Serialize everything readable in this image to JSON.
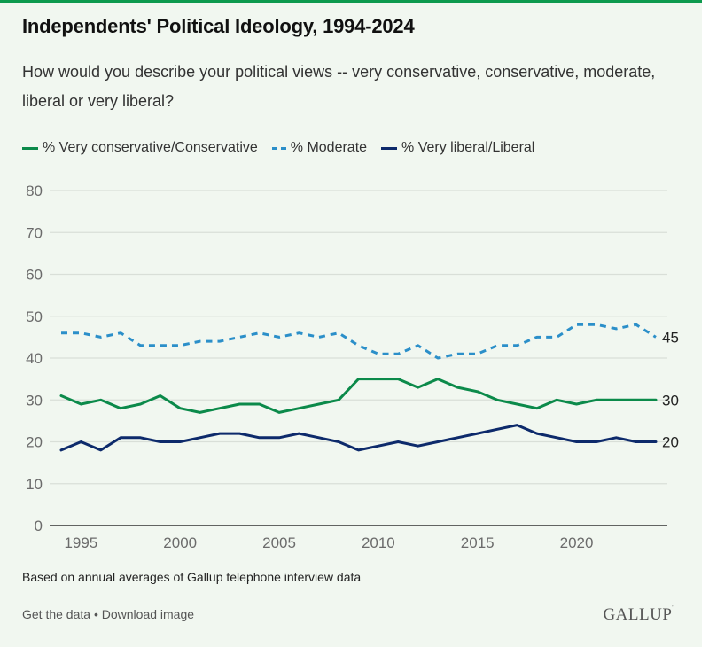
{
  "title": "Independents' Political Ideology, 1994-2024",
  "subtitle": "How would you describe your political views -- very conservative, conservative, moderate, liberal or very liberal?",
  "footer": {
    "note": "Based on annual averages of Gallup telephone interview data",
    "get_data": "Get the data",
    "separator": " • ",
    "download": "Download image",
    "logo": "GALLUP",
    "logo_mark": "'"
  },
  "colors": {
    "conservative": "#0b8a4a",
    "moderate": "#2b8fc9",
    "liberal": "#0d2a6b",
    "accent": "#0d9a4e",
    "grid": "#d9dfd8",
    "axis": "#333333"
  },
  "chart_data": {
    "type": "line",
    "title": "Independents' Political Ideology, 1994-2024",
    "xlabel": "",
    "ylabel": "",
    "ylim": [
      0,
      80
    ],
    "xlim": [
      1994,
      2024
    ],
    "yticks": [
      0,
      10,
      20,
      30,
      40,
      50,
      60,
      70,
      80
    ],
    "xticks": [
      1995,
      2000,
      2005,
      2010,
      2015,
      2020
    ],
    "grid": true,
    "legend_position": "top-left",
    "x": [
      1994,
      1995,
      1996,
      1997,
      1998,
      1999,
      2000,
      2001,
      2002,
      2003,
      2004,
      2005,
      2006,
      2007,
      2008,
      2009,
      2010,
      2011,
      2012,
      2013,
      2014,
      2015,
      2016,
      2017,
      2018,
      2019,
      2020,
      2021,
      2022,
      2023,
      2024
    ],
    "series": [
      {
        "name": "% Very conservative/Conservative",
        "key": "conservative",
        "style": "solid",
        "values": [
          31,
          29,
          30,
          28,
          29,
          31,
          28,
          27,
          28,
          29,
          29,
          27,
          28,
          29,
          30,
          35,
          35,
          35,
          33,
          35,
          33,
          32,
          30,
          29,
          28,
          30,
          29,
          30,
          30,
          30,
          30
        ],
        "end_label": "30"
      },
      {
        "name": "% Moderate",
        "key": "moderate",
        "style": "dashed",
        "values": [
          46,
          46,
          45,
          46,
          43,
          43,
          43,
          44,
          44,
          45,
          46,
          45,
          46,
          45,
          46,
          43,
          41,
          41,
          43,
          40,
          41,
          41,
          43,
          43,
          45,
          45,
          48,
          48,
          47,
          48,
          45
        ],
        "end_label": "45"
      },
      {
        "name": "% Very liberal/Liberal",
        "key": "liberal",
        "style": "solid",
        "values": [
          18,
          20,
          18,
          21,
          21,
          20,
          20,
          21,
          22,
          22,
          21,
          21,
          22,
          21,
          20,
          18,
          19,
          20,
          19,
          20,
          21,
          22,
          23,
          24,
          22,
          21,
          20,
          20,
          21,
          20,
          20
        ],
        "end_label": "20"
      }
    ]
  }
}
